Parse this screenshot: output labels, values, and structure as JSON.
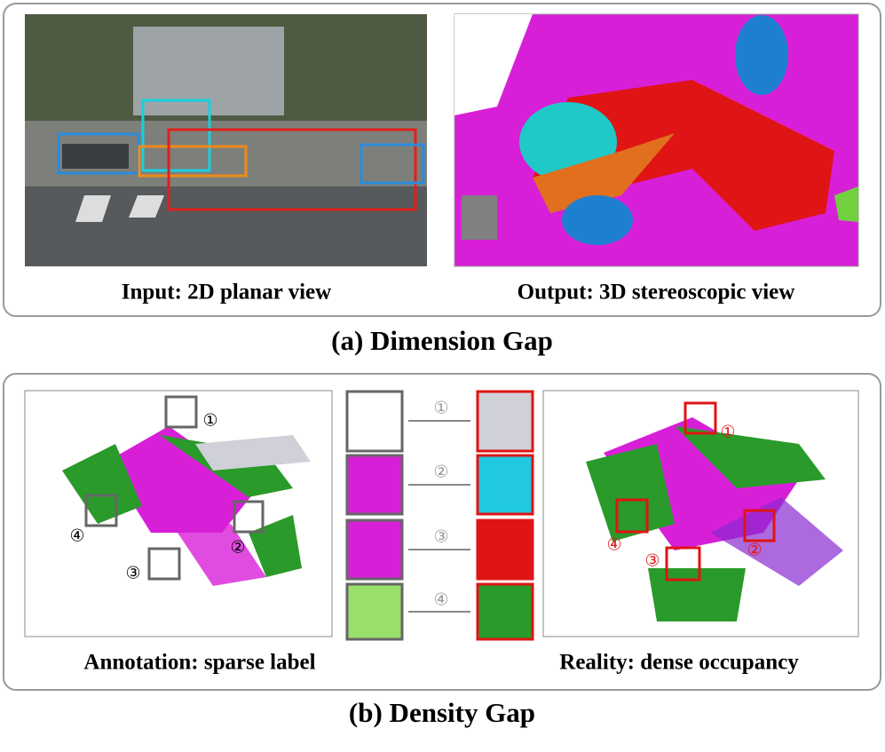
{
  "panel_a": {
    "left_caption": "Input: 2D planar view",
    "right_caption": "Output: 3D stereoscopic view",
    "title": "(a) Dimension Gap"
  },
  "panel_b": {
    "left_caption": "Annotation: sparse label",
    "right_caption": "Reality: dense occupancy",
    "title": "(b) Density Gap",
    "markers": [
      "①",
      "②",
      "③",
      "④"
    ]
  }
}
